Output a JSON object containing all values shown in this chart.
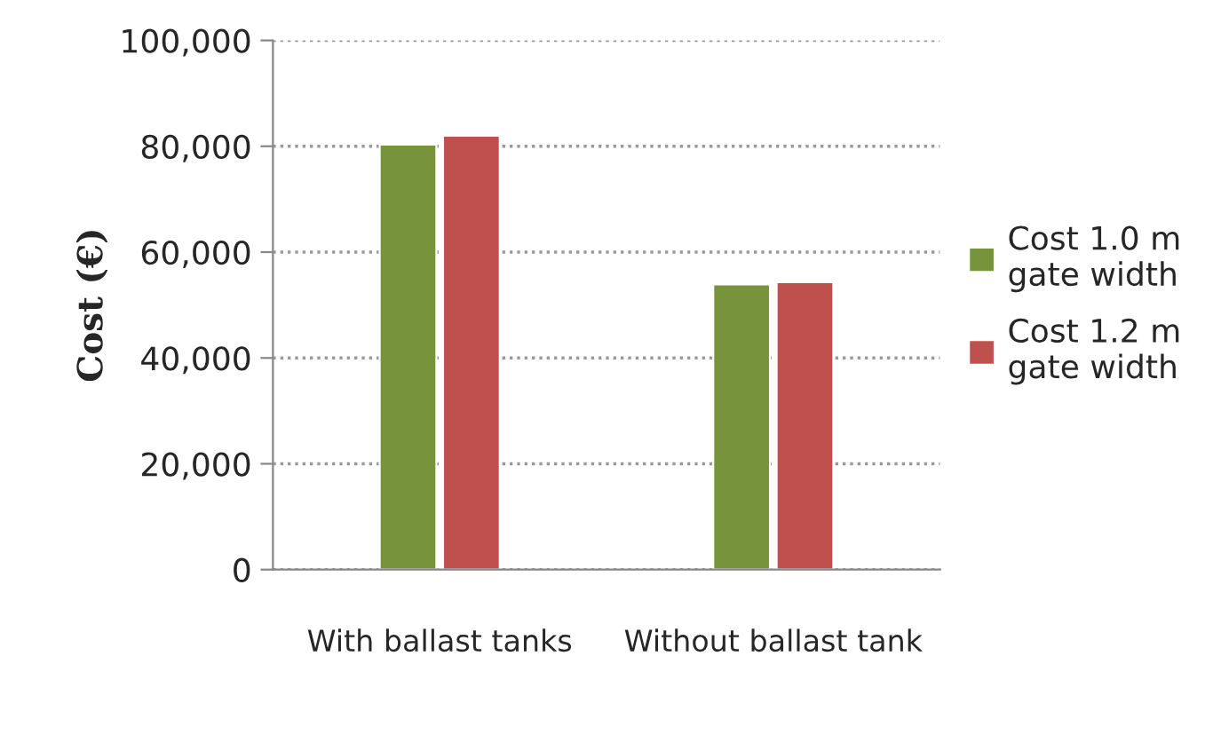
{
  "chart_data": {
    "type": "bar",
    "ylabel": "Cost (€)",
    "categories": [
      "With ballast tanks",
      "Without ballast tank"
    ],
    "series": [
      {
        "name": "Cost 1.0 m gate width",
        "color": "#77933c",
        "values": [
          80300,
          53900
        ]
      },
      {
        "name": "Cost 1.2 m gate width",
        "color": "#c0504d",
        "values": [
          82000,
          54300
        ]
      }
    ],
    "ylim": [
      0,
      100000
    ],
    "yticks": [
      {
        "value": 0,
        "label": "0"
      },
      {
        "value": 20000,
        "label": "20,000"
      },
      {
        "value": 40000,
        "label": "40,000"
      },
      {
        "value": 60000,
        "label": "60,000"
      },
      {
        "value": 80000,
        "label": "80,000"
      },
      {
        "value": 100000,
        "label": "100,000"
      }
    ],
    "grid": "y",
    "legend": "right"
  }
}
